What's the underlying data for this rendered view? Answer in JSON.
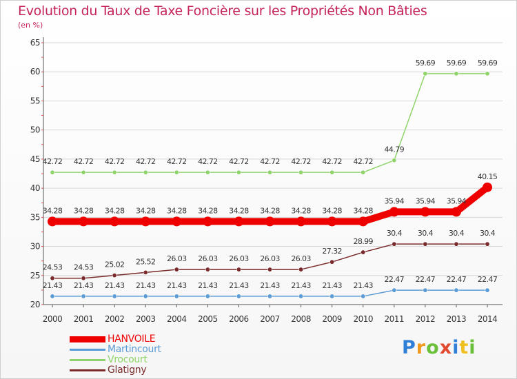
{
  "chart_data": {
    "type": "line",
    "title": "Evolution du Taux de Taxe Foncière sur les Propriétés Non Bâties",
    "ylabel": "(en %)",
    "xlabel": "",
    "ylim": [
      20,
      65
    ],
    "yticks": [
      20,
      25,
      30,
      35,
      40,
      45,
      50,
      55,
      60,
      65
    ],
    "x": [
      "2000",
      "2001",
      "2002",
      "2003",
      "2004",
      "2005",
      "2006",
      "2007",
      "2008",
      "2009",
      "2010",
      "2011",
      "2012",
      "2013",
      "2014"
    ],
    "series": [
      {
        "name": "HANVOILE",
        "color": "#ee0000",
        "values": [
          34.28,
          34.28,
          34.28,
          34.28,
          34.28,
          34.28,
          34.28,
          34.28,
          34.28,
          34.28,
          34.28,
          35.94,
          35.94,
          35.94,
          40.15
        ],
        "labels": [
          "34.28",
          "34.28",
          "34.28",
          "34.28",
          "34.28",
          "34.28",
          "34.28",
          "34.28",
          "34.28",
          "34.28",
          "34.28",
          "35.94",
          "35.94",
          "35.94",
          "40.15"
        ]
      },
      {
        "name": "Martincourt",
        "color": "#5b9bd5",
        "values": [
          21.43,
          21.43,
          21.43,
          21.43,
          21.43,
          21.43,
          21.43,
          21.43,
          21.43,
          21.43,
          21.43,
          22.47,
          22.47,
          22.47,
          22.47
        ],
        "labels": [
          "21.43",
          "21.43",
          "21.43",
          "21.43",
          "21.43",
          "21.43",
          "21.43",
          "21.43",
          "21.43",
          "21.43",
          "21.43",
          "22.47",
          "22.47",
          "22.47",
          "22.47"
        ]
      },
      {
        "name": "Vrocourt",
        "color": "#8ed46a",
        "values": [
          42.72,
          42.72,
          42.72,
          42.72,
          42.72,
          42.72,
          42.72,
          42.72,
          42.72,
          42.72,
          42.72,
          44.79,
          59.69,
          59.69,
          59.69
        ],
        "labels": [
          "42.72",
          "42.72",
          "42.72",
          "42.72",
          "42.72",
          "42.72",
          "42.72",
          "42.72",
          "42.72",
          "42.72",
          "42.72",
          "44.79",
          "59.69",
          "59.69",
          "59.69"
        ]
      },
      {
        "name": "Glatigny",
        "color": "#7a2a2a",
        "values": [
          24.53,
          24.53,
          25.02,
          25.52,
          26.03,
          26.03,
          26.03,
          26.03,
          26.03,
          27.32,
          28.99,
          30.4,
          30.4,
          30.4,
          30.4
        ],
        "labels": [
          "24.53",
          "24.53",
          "25.02",
          "25.52",
          "26.03",
          "26.03",
          "26.03",
          "26.03",
          "26.03",
          "27.32",
          "28.99",
          "30.4",
          "30.4",
          "30.4",
          "30.4"
        ]
      }
    ]
  },
  "legend": [
    {
      "name": "HANVOILE",
      "color": "#ee0000"
    },
    {
      "name": "Martincourt",
      "color": "#5b9bd5"
    },
    {
      "name": "Vrocourt",
      "color": "#8ed46a"
    },
    {
      "name": "Glatigny",
      "color": "#7a2a2a"
    }
  ],
  "brand": {
    "letters": [
      "P",
      "r",
      "o",
      "x",
      "i",
      "t",
      "i"
    ]
  }
}
